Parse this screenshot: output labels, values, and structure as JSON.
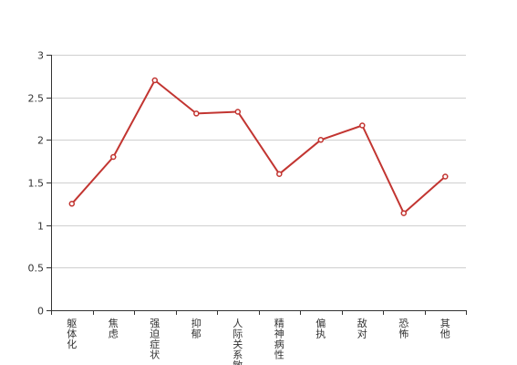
{
  "colors": {
    "series": "#c23531",
    "grid": "#cfcfcf",
    "axis": "#333333",
    "text": "#333333",
    "background": "#ffffff"
  },
  "chart_data": {
    "type": "line",
    "title": "",
    "xlabel": "",
    "ylabel": "",
    "categories": [
      "躯体化",
      "焦虑",
      "强迫症状",
      "抑郁",
      "人际关系敏感",
      "精神病性",
      "偏执",
      "敌对",
      "恐怖",
      "其他"
    ],
    "series": [
      {
        "values": [
          1.25,
          1.8,
          2.7,
          2.31,
          2.33,
          1.6,
          2.0,
          2.17,
          1.14,
          1.57
        ]
      }
    ],
    "ylim": [
      0,
      3
    ],
    "yticks": [
      0,
      0.5,
      1,
      1.5,
      2,
      2.5,
      3
    ],
    "ytick_labels": [
      "0",
      "0.5",
      "1",
      "1.5",
      "2",
      "2.5",
      "3"
    ],
    "grid": true,
    "legend": "none",
    "markers": "hollow-circle"
  }
}
